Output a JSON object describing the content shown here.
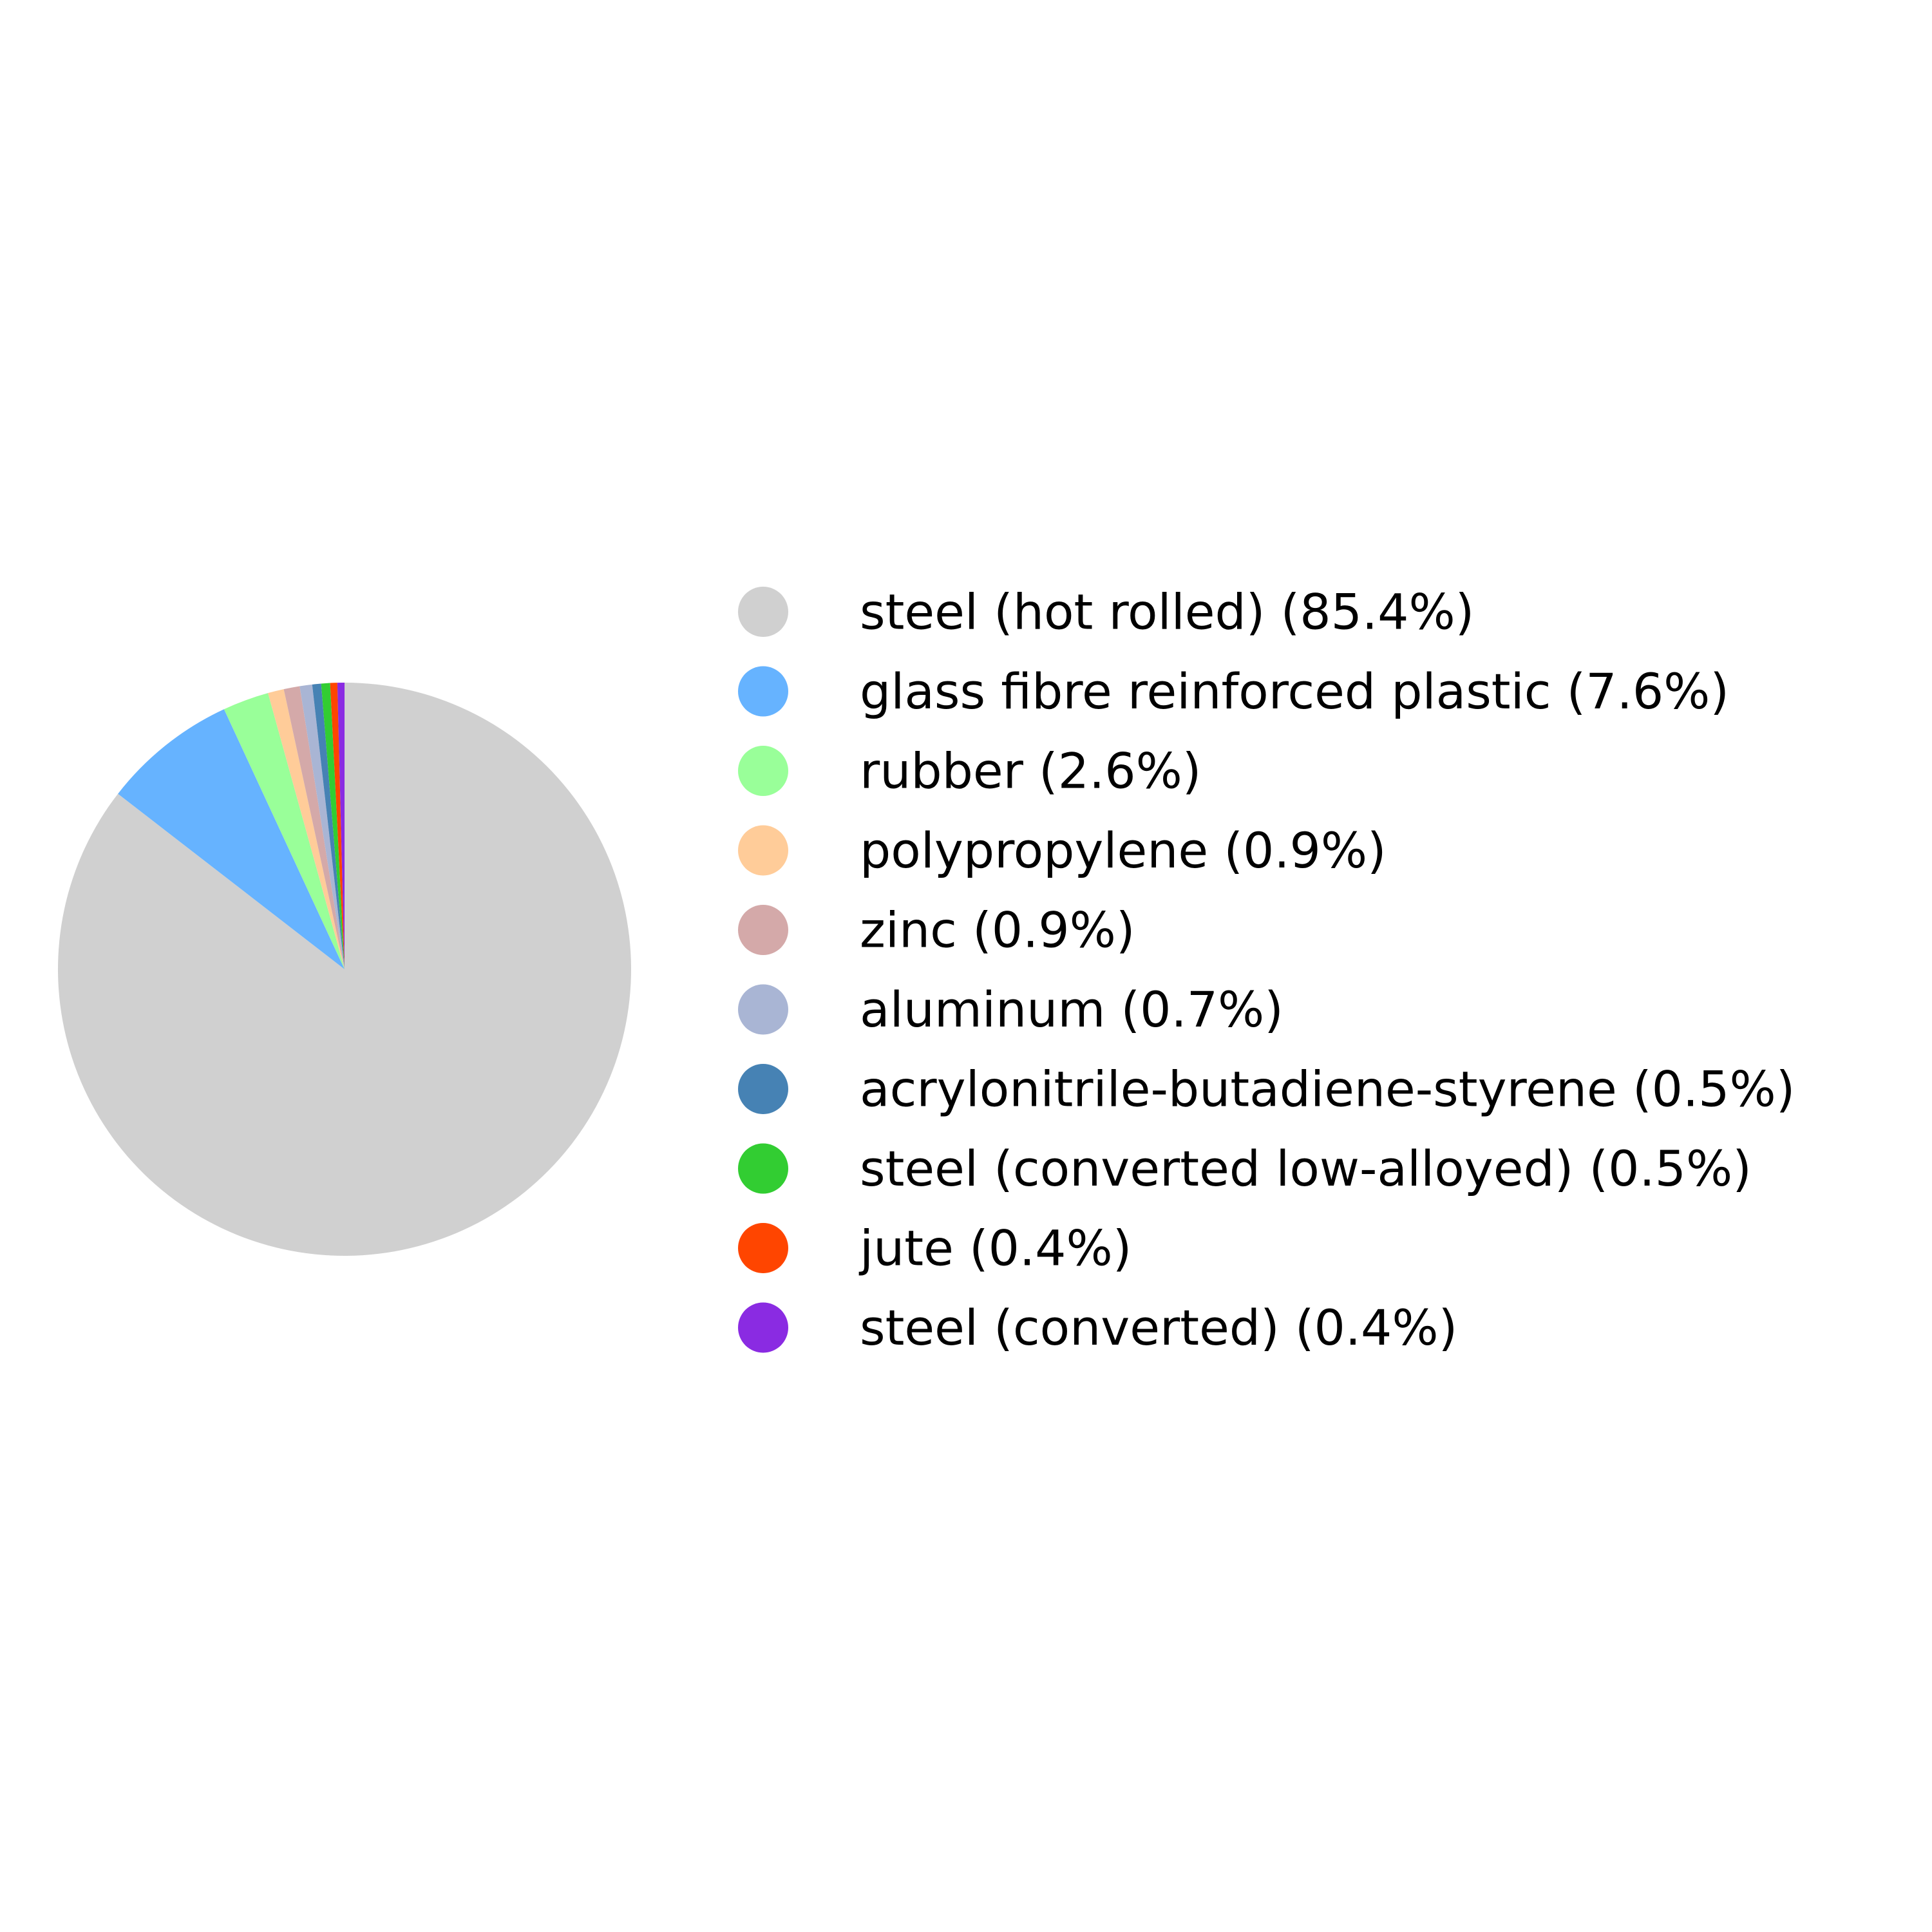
{
  "chart_data": {
    "type": "pie",
    "title": "",
    "start_angle_deg": 90,
    "direction": "clockwise",
    "legend_position": "right",
    "slices": [
      {
        "label": "steel (hot rolled) (85.4%)",
        "value": 85.4,
        "color": "#d0d0d0"
      },
      {
        "label": "glass fibre reinforced plastic (7.6%)",
        "value": 7.6,
        "color": "#66b3ff"
      },
      {
        "label": "rubber (2.6%)",
        "value": 2.6,
        "color": "#99ff99"
      },
      {
        "label": "polypropylene (0.9%)",
        "value": 0.9,
        "color": "#ffcc99"
      },
      {
        "label": "zinc (0.9%)",
        "value": 0.9,
        "color": "#d4a9a9"
      },
      {
        "label": "aluminum (0.7%)",
        "value": 0.7,
        "color": "#a9b5d4"
      },
      {
        "label": "acrylonitrile-butadiene-styrene (0.5%)",
        "value": 0.5,
        "color": "#4682b4"
      },
      {
        "label": "steel (converted low-alloyed) (0.5%)",
        "value": 0.5,
        "color": "#32cd32"
      },
      {
        "label": "jute (0.4%)",
        "value": 0.4,
        "color": "#ff4500"
      },
      {
        "label": "steel (converted) (0.4%)",
        "value": 0.4,
        "color": "#8a2be2"
      }
    ]
  }
}
